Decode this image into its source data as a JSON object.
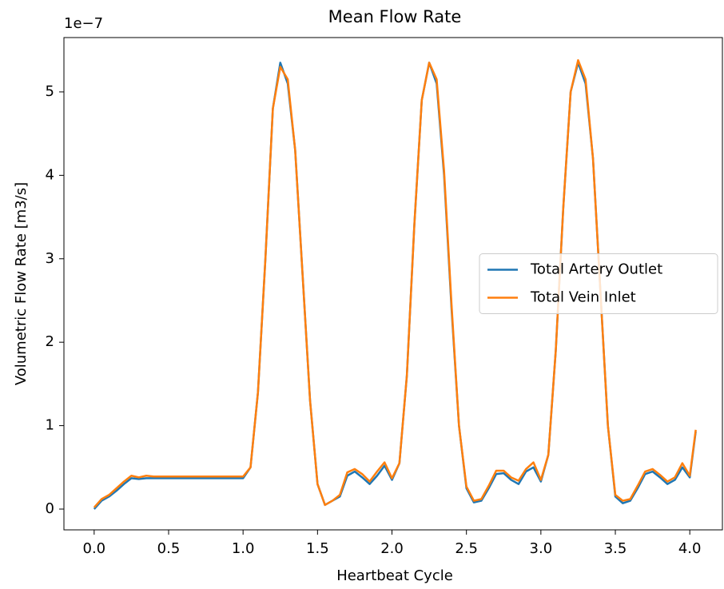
{
  "chart_data": {
    "type": "line",
    "title": "Mean Flow Rate",
    "x_label": "Heartbeat Cycle",
    "y_label": "Volumetric Flow Rate [m3/s]",
    "y_offset_label": "1e−7",
    "x": [
      0,
      0.05,
      0.1,
      0.15,
      0.2,
      0.25,
      0.3,
      0.35,
      0.4,
      0.45,
      0.5,
      0.55,
      0.6,
      0.65,
      0.7,
      0.75,
      0.8,
      0.85,
      0.9,
      0.95,
      1.0,
      1.05,
      1.1,
      1.15,
      1.2,
      1.25,
      1.3,
      1.35,
      1.4,
      1.45,
      1.5,
      1.55,
      1.6,
      1.65,
      1.7,
      1.75,
      1.8,
      1.85,
      1.9,
      1.95,
      2.0,
      2.05,
      2.1,
      2.15,
      2.2,
      2.25,
      2.3,
      2.35,
      2.4,
      2.45,
      2.5,
      2.55,
      2.6,
      2.65,
      2.7,
      2.75,
      2.8,
      2.85,
      2.9,
      2.95,
      3.0,
      3.05,
      3.1,
      3.15,
      3.2,
      3.25,
      3.3,
      3.35,
      3.4,
      3.45,
      3.5,
      3.55,
      3.6,
      3.65,
      3.7,
      3.75,
      3.8,
      3.85,
      3.9,
      3.95,
      4.0,
      4.04
    ],
    "series": [
      {
        "name": "Total Artery Outlet",
        "color": "#1f77b4",
        "values": [
          0,
          0.1,
          0.15,
          0.22,
          0.3,
          0.37,
          0.36,
          0.37,
          0.37,
          0.37,
          0.37,
          0.37,
          0.37,
          0.37,
          0.37,
          0.37,
          0.37,
          0.37,
          0.37,
          0.37,
          0.37,
          0.5,
          1.4,
          3.0,
          4.8,
          5.35,
          5.1,
          4.3,
          2.8,
          1.3,
          0.3,
          0.05,
          0.1,
          0.15,
          0.4,
          0.45,
          0.38,
          0.3,
          0.4,
          0.52,
          0.35,
          0.55,
          1.6,
          3.4,
          4.9,
          5.35,
          5.1,
          4.0,
          2.4,
          1.0,
          0.25,
          0.08,
          0.1,
          0.25,
          0.42,
          0.43,
          0.35,
          0.3,
          0.45,
          0.5,
          0.33,
          0.65,
          1.9,
          3.6,
          5.0,
          5.35,
          5.1,
          4.2,
          2.6,
          1.0,
          0.15,
          0.07,
          0.1,
          0.25,
          0.42,
          0.45,
          0.38,
          0.3,
          0.35,
          0.5,
          0.38,
          0.93
        ]
      },
      {
        "name": "Total Vein Inlet",
        "color": "#ff7f0e",
        "values": [
          0.02,
          0.12,
          0.17,
          0.25,
          0.33,
          0.4,
          0.38,
          0.4,
          0.39,
          0.39,
          0.39,
          0.39,
          0.39,
          0.39,
          0.39,
          0.39,
          0.39,
          0.39,
          0.39,
          0.39,
          0.39,
          0.5,
          1.4,
          3.0,
          4.8,
          5.3,
          5.15,
          4.3,
          2.8,
          1.3,
          0.3,
          0.05,
          0.1,
          0.17,
          0.44,
          0.48,
          0.42,
          0.33,
          0.45,
          0.56,
          0.37,
          0.55,
          1.6,
          3.4,
          4.9,
          5.35,
          5.15,
          4.05,
          2.45,
          1.0,
          0.27,
          0.1,
          0.12,
          0.28,
          0.46,
          0.46,
          0.38,
          0.34,
          0.48,
          0.56,
          0.35,
          0.65,
          1.9,
          3.6,
          5.0,
          5.38,
          5.15,
          4.2,
          2.6,
          1.0,
          0.17,
          0.1,
          0.12,
          0.28,
          0.45,
          0.48,
          0.41,
          0.33,
          0.38,
          0.55,
          0.4,
          0.95
        ]
      }
    ],
    "xlim": [
      -0.203,
      4.219
    ],
    "ylim": [
      -0.249,
      5.651
    ],
    "xticks": [
      {
        "value": 0,
        "label": "0.0"
      },
      0.5,
      {
        "value": 1,
        "label": "1.0"
      },
      1.5,
      {
        "value": 2,
        "label": "2.0"
      },
      2.5,
      {
        "value": 3,
        "label": "3.0"
      },
      3.5,
      {
        "value": 4,
        "label": "4.0"
      }
    ],
    "yticks": [
      0,
      1,
      2,
      3,
      4,
      5
    ],
    "legend": "center right",
    "grid": false
  }
}
